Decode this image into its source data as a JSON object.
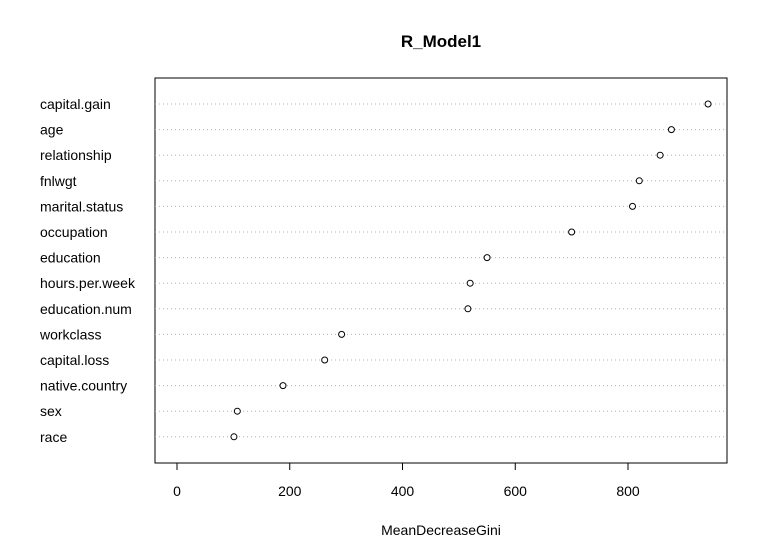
{
  "chart_data": {
    "type": "scatter",
    "title": "R_Model1",
    "xlabel": "MeanDecreaseGini",
    "ylabel": "",
    "xlim": [
      -40,
      985
    ],
    "xticks": [
      0,
      200,
      400,
      600,
      800
    ],
    "grid": "dotted horizontal lines per variable",
    "categories": [
      "capital.gain",
      "age",
      "relationship",
      "fnlwgt",
      "marital.status",
      "occupation",
      "education",
      "hours.per.week",
      "education.num",
      "workclass",
      "capital.loss",
      "native.country",
      "sex",
      "race"
    ],
    "values": [
      942,
      877,
      857,
      820,
      808,
      700,
      550,
      520,
      516,
      292,
      262,
      188,
      107,
      101
    ],
    "colors": {
      "point_stroke": "#000000",
      "grid": "#b0b0b0",
      "frame": "#000000"
    }
  }
}
